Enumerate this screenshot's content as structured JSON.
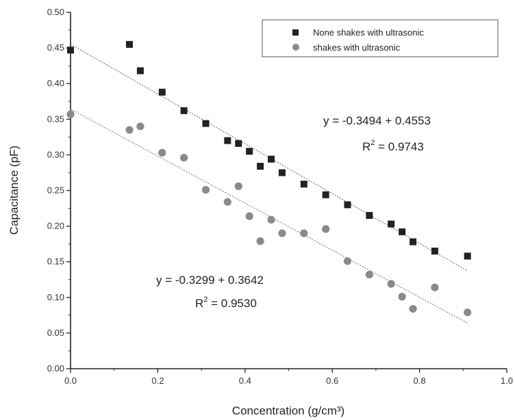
{
  "chart_data": {
    "type": "scatter",
    "xlabel": "Concentration (g/cm³)",
    "ylabel": "Capacitance (pF)",
    "xlim": [
      0.0,
      1.0
    ],
    "ylim": [
      0.0,
      0.5
    ],
    "x_ticks": [
      "0.0",
      "0.2",
      "0.4",
      "0.6",
      "0.8",
      "1.0"
    ],
    "y_ticks": [
      "0.00",
      "0.05",
      "0.10",
      "0.15",
      "0.20",
      "0.25",
      "0.30",
      "0.35",
      "0.40",
      "0.45",
      "0.50"
    ],
    "grid": false,
    "legend_position": "top-right",
    "series": [
      {
        "name": "None shakes with ultrasonic",
        "marker": "square",
        "color": "#222222",
        "x": [
          0.0,
          0.135,
          0.16,
          0.21,
          0.26,
          0.31,
          0.36,
          0.385,
          0.41,
          0.435,
          0.46,
          0.485,
          0.535,
          0.585,
          0.635,
          0.685,
          0.735,
          0.76,
          0.785,
          0.835,
          0.91
        ],
        "y": [
          0.447,
          0.455,
          0.418,
          0.388,
          0.362,
          0.344,
          0.32,
          0.316,
          0.305,
          0.284,
          0.294,
          0.275,
          0.259,
          0.244,
          0.23,
          0.215,
          0.203,
          0.192,
          0.178,
          0.165,
          0.158
        ],
        "fit": {
          "slope": -0.3494,
          "intercept": 0.4553
        }
      },
      {
        "name": "shakes with ultrasonic",
        "marker": "circle",
        "color": "#8a8a8a",
        "x": [
          0.0,
          0.135,
          0.16,
          0.21,
          0.26,
          0.31,
          0.36,
          0.385,
          0.41,
          0.435,
          0.46,
          0.485,
          0.535,
          0.585,
          0.635,
          0.685,
          0.735,
          0.76,
          0.785,
          0.835,
          0.91
        ],
        "y": [
          0.357,
          0.335,
          0.34,
          0.303,
          0.296,
          0.251,
          0.234,
          0.256,
          0.214,
          0.179,
          0.209,
          0.19,
          0.19,
          0.196,
          0.151,
          0.132,
          0.119,
          0.101,
          0.084,
          0.114,
          0.079
        ],
        "fit": {
          "slope": -0.3299,
          "intercept": 0.3642
        }
      }
    ],
    "annotations": [
      {
        "id": "fit-eq-1",
        "text": "y = -0.3494 + 0.4553"
      },
      {
        "id": "fit-r2-1",
        "label": "R",
        "sup": "2",
        "value": " = 0.9743"
      },
      {
        "id": "fit-eq-2",
        "text": "y = -0.3299 + 0.3642"
      },
      {
        "id": "fit-r2-2",
        "label": "R",
        "sup": "2",
        "value": " = 0.9530"
      }
    ]
  }
}
